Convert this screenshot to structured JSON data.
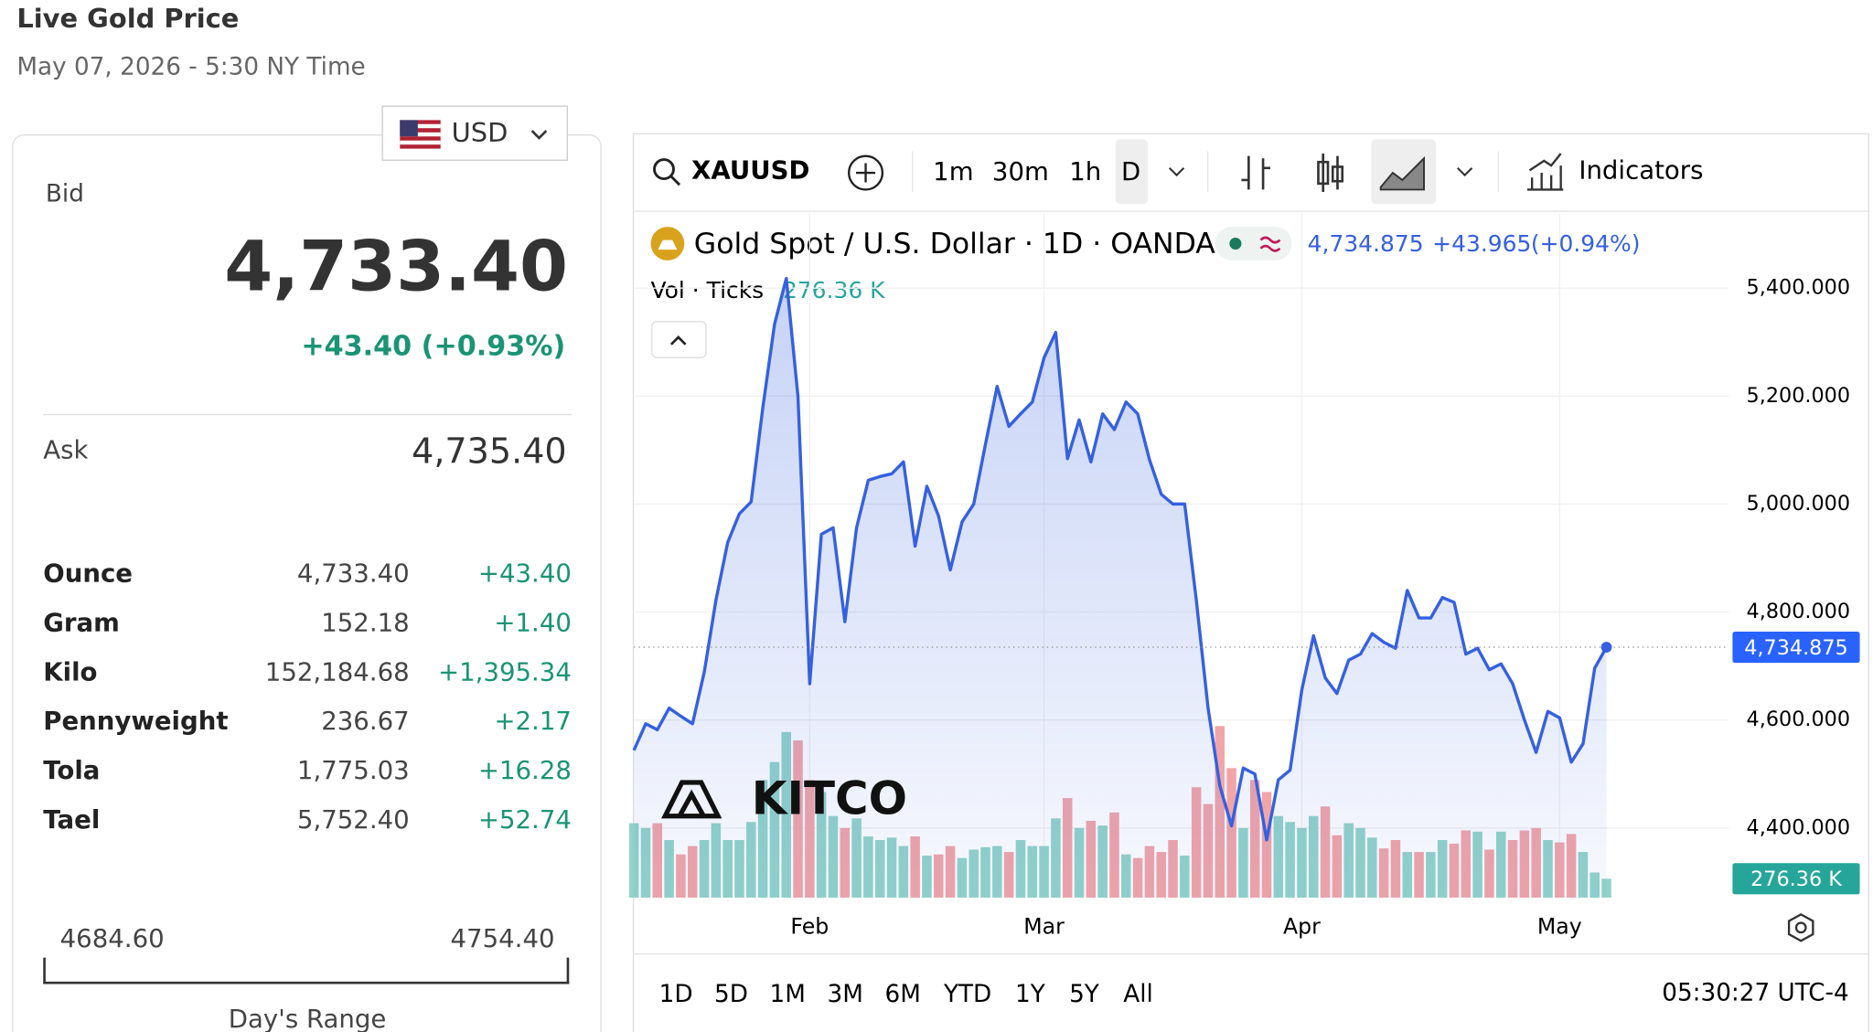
{
  "header": {
    "title": "Live Gold Price",
    "subtitle": "May 07, 2026 - 5:30 NY Time"
  },
  "currency": "USD",
  "quote": {
    "bid_label": "Bid",
    "bid": "4,733.40",
    "change": "+43.40 (+0.93%)",
    "ask_label": "Ask",
    "ask": "4,735.40"
  },
  "units": {
    "rows": [
      [
        "Ounce",
        "4,733.40",
        "+43.40"
      ],
      [
        "Gram",
        "152.18",
        "+1.40"
      ],
      [
        "Kilo",
        "152,184.68",
        "+1,395.34"
      ],
      [
        "Pennyweight",
        "236.67",
        "+2.17"
      ],
      [
        "Tola",
        "1,775.03",
        "+16.28"
      ],
      [
        "Tael",
        "5,752.40",
        "+52.74"
      ]
    ]
  },
  "day_range": {
    "low": "4684.60",
    "high": "4754.40",
    "label": "Day's Range"
  },
  "toolbar": {
    "symbol": "XAUUSD",
    "intervals": [
      "1m",
      "30m",
      "1h",
      "D"
    ],
    "indicators": "Indicators"
  },
  "footer": {
    "ranges": [
      "1D",
      "5D",
      "1M",
      "3M",
      "6M",
      "YTD",
      "1Y",
      "5Y",
      "All"
    ],
    "clock": "05:30:27 UTC-4"
  },
  "chart_data": {
    "type": "line",
    "title": "Gold Spot / U.S. Dollar · 1D · OANDA",
    "price_label": "4,734.875",
    "change": "+43.965",
    "change_pct": "(+0.94%)",
    "volume_title": "Vol · Ticks",
    "watermark": "KITCO",
    "categories": [
      null,
      null,
      null,
      null,
      null,
      null,
      null,
      null,
      null,
      null,
      null,
      null,
      null,
      null,
      null,
      "Feb",
      null,
      null,
      null,
      null,
      null,
      null,
      null,
      null,
      null,
      null,
      null,
      null,
      null,
      null,
      null,
      null,
      null,
      null,
      null,
      "Mar",
      null,
      null,
      null,
      null,
      null,
      null,
      null,
      null,
      null,
      null,
      null,
      null,
      null,
      null,
      null,
      null,
      null,
      null,
      null,
      null,
      null,
      "Apr",
      null,
      null,
      null,
      null,
      null,
      null,
      null,
      null,
      null,
      null,
      null,
      null,
      null,
      null,
      null,
      null,
      null,
      null,
      null,
      null,
      null,
      "May",
      null,
      null,
      null,
      null
    ],
    "series": [
      {
        "color": "#3560e0",
        "values": [
          4544,
          4593,
          4582,
          4622,
          4607,
          4593,
          4689,
          4822,
          4929,
          4982,
          5004,
          5178,
          5333,
          5418,
          5200,
          4667,
          4944,
          4956,
          4782,
          4956,
          5044,
          5051,
          5056,
          5078,
          4922,
          5033,
          4978,
          4878,
          4967,
          5000,
          5111,
          5218,
          5144,
          5167,
          5189,
          5271,
          5318,
          5084,
          5156,
          5078,
          5167,
          5138,
          5189,
          5167,
          5082,
          5018,
          5000,
          5000,
          4822,
          4622,
          4478,
          4404,
          4511,
          4500,
          4378,
          4489,
          4507,
          4656,
          4756,
          4678,
          4649,
          4711,
          4722,
          4760,
          4744,
          4733,
          4840,
          4789,
          4789,
          4827,
          4818,
          4722,
          4733,
          4693,
          4704,
          4667,
          4600,
          4540,
          4616,
          4604,
          4522,
          4556,
          4696,
          4734.875
        ]
      }
    ],
    "volume": {
      "up_color": "#92d3c9",
      "down_color": "#f2a5a8",
      "label": "276.36 K",
      "lim": [
        0,
        10000
      ],
      "values": [
        1088,
        1017,
        1088,
        842,
        632,
        754,
        842,
        1088,
        842,
        842,
        1105,
        1719,
        1982,
        2421,
        2298,
        1719,
        1544,
        1193,
        1017,
        1158,
        895,
        842,
        877,
        754,
        895,
        614,
        632,
        754,
        579,
        702,
        737,
        754,
        667,
        842,
        754,
        754,
        1158,
        1456,
        1017,
        1123,
        1053,
        1245,
        632,
        579,
        754,
        667,
        842,
        614,
        1614,
        1368,
        2508,
        1894,
        1017,
        1719,
        1544,
        1193,
        1105,
        1017,
        1193,
        1333,
        912,
        1088,
        1017,
        877,
        719,
        842,
        667,
        667,
        667,
        842,
        789,
        982,
        965,
        702,
        965,
        842,
        982,
        1017,
        842,
        807,
        930,
        667,
        368,
        276.36
      ]
    },
    "ylim": [
      4271,
      5538
    ],
    "yticks": [
      {
        "value": 4400,
        "label": "4,400.000"
      },
      {
        "value": 4600,
        "label": "4,600.000"
      },
      {
        "value": 4800,
        "label": "4,800.000"
      },
      {
        "value": 5000,
        "label": "5,000.000"
      },
      {
        "value": 5200,
        "label": "5,200.000"
      },
      {
        "value": 5400,
        "label": "5,400.000"
      }
    ],
    "grid": true
  }
}
